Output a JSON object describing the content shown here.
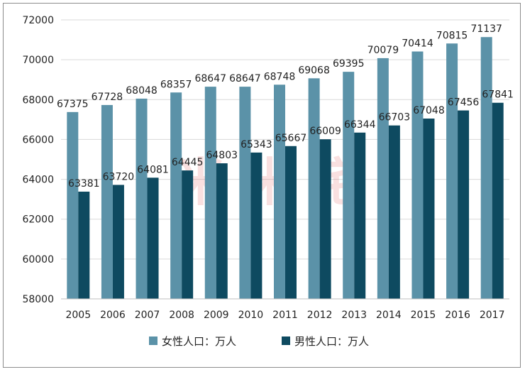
{
  "chart_data": {
    "type": "bar",
    "categories": [
      "2005",
      "2006",
      "2007",
      "2008",
      "2009",
      "2010",
      "2011",
      "2012",
      "2013",
      "2014",
      "2015",
      "2016",
      "2017"
    ],
    "series": [
      {
        "name": "女性人口：万人",
        "color": "#5b92a8",
        "values": [
          67375,
          67728,
          68048,
          68357,
          68647,
          68647,
          68748,
          69068,
          69395,
          70079,
          70414,
          70815,
          71137
        ]
      },
      {
        "name": "男性人口：万人",
        "color": "#0e4a60",
        "values": [
          63381,
          63720,
          64081,
          64445,
          64803,
          65343,
          65667,
          66009,
          66344,
          66703,
          67048,
          67456,
          67841
        ]
      }
    ],
    "ylim": [
      58000,
      72000
    ],
    "yticks": [
      58000,
      60000,
      62000,
      64000,
      66000,
      68000,
      70000,
      72000
    ],
    "grid": true,
    "legend_position": "bottom"
  }
}
